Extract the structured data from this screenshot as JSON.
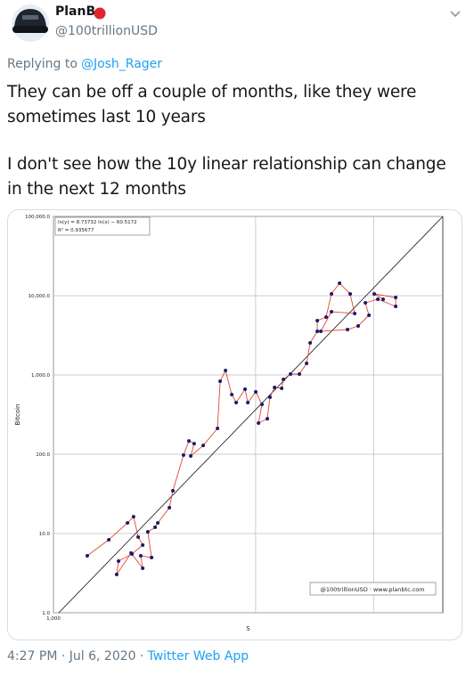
{
  "tweet": {
    "name": "PlanB",
    "handle": "@100trillionUSD",
    "replying_to": "Replying to",
    "reply_handle": "@Josh_Rager",
    "lines": [
      "They can be off a couple of months, like they were",
      "sometimes last 10 years",
      "I don't see how the 10y linear relationship can change",
      "in the next 12 months"
    ],
    "footer": [
      "4:27 PM · Jul 6, 2020 ·",
      "Twitter Web App"
    ]
  },
  "chart_data": {
    "type": "scatter",
    "xlabel": "S",
    "ylabel": "Bitcoin",
    "annotations": [
      "ln(y) = 8.73732 ln(x) − 60.5172",
      "R² = 0.935677",
      "@100trillionUSD · www.planbtc.com"
    ],
    "xscale": "log",
    "yscale": "log",
    "grid": true,
    "color": "#1c1a6b",
    "line_color": "#e2473a",
    "xlim": [
      1000,
      3800
    ],
    "ylim": [
      1,
      100000
    ],
    "xticks": [
      {
        "value": 1000,
        "label": "1,000"
      },
      {
        "value": 2000,
        "label": null
      },
      {
        "value": 3000,
        "label": null
      }
    ],
    "yticks": [
      {
        "value": 1,
        "label": "1.0"
      },
      {
        "value": 10,
        "label": "10.0"
      },
      {
        "value": 100,
        "label": "100.0"
      },
      {
        "value": 1000,
        "label": "1,000.0"
      },
      {
        "value": 10000,
        "label": "10,000.0"
      },
      {
        "value": 100000,
        "label": "100,000.0"
      }
    ],
    "x": [
      1123,
      1209,
      1289,
      1316,
      1337,
      1358,
      1309,
      1250,
      1242,
      1305,
      1358,
      1349,
      1400,
      1382,
      1417,
      1430,
      1488,
      1506,
      1562,
      1591,
      1620,
      1601,
      1671,
      1755,
      1771,
      1804,
      1843,
      1871,
      1929,
      1947,
      2001,
      2044,
      2020,
      2082,
      2101,
      2134,
      2187,
      2200,
      2254,
      2324,
      2382,
      2411,
      2471,
      2471,
      2547,
      2594,
      2667,
      2766,
      2809,
      2594,
      2501,
      2741,
      2843,
      2950,
      2914,
      3041,
      3233,
      3233,
      3004,
      3097
    ],
    "values": [
      5.24,
      8.34,
      13.6,
      16.3,
      9.02,
      7.14,
      5.52,
      4.48,
      3.04,
      5.66,
      3.65,
      5.24,
      4.98,
      10.5,
      12.0,
      13.6,
      21.2,
      34.6,
      97.5,
      147,
      136,
      95,
      129,
      212,
      834,
      1138,
      566,
      449,
      661,
      449,
      612,
      426,
      247,
      281,
      524,
      696,
      678,
      879,
      1026,
      1026,
      1400,
      2538,
      3556,
      4845,
      5370,
      10520,
      14360,
      10520,
      5960,
      6280,
      3556,
      3741,
      4150,
      5660,
      8130,
      9020,
      7330,
      9500,
      10520,
      9020
    ]
  }
}
